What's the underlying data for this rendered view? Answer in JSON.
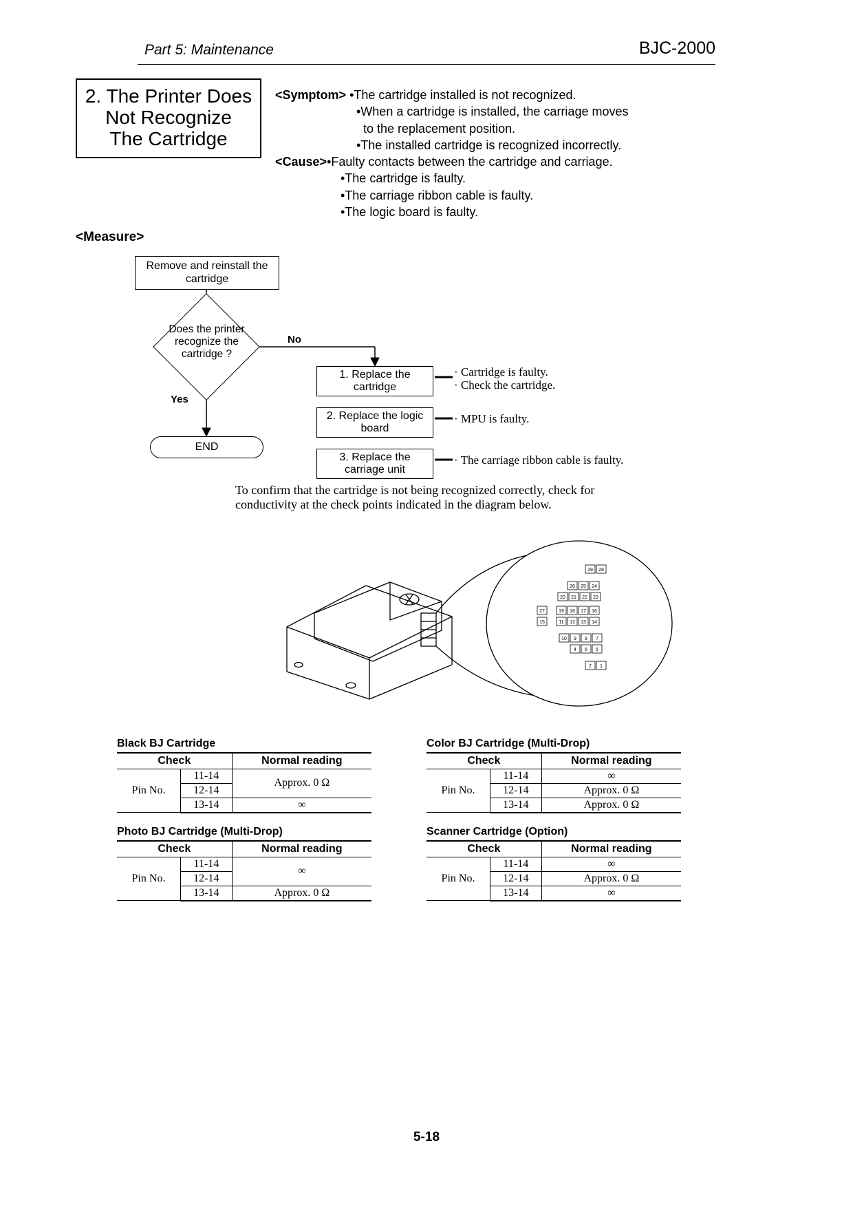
{
  "header": {
    "part": "Part 5: Maintenance",
    "model": "BJC-2000"
  },
  "section": {
    "num_title": "2. The Printer Does",
    "line2": "Not Recognize",
    "line3": "The Cartridge"
  },
  "symptom": {
    "label": "<Symptom>",
    "s1": "•The cartridge installed is not recognized.",
    "s2": "•When a cartridge is installed, the carriage moves",
    "s2b": " to the replacement position.",
    "s3": "•The installed cartridge is recognized incorrectly."
  },
  "cause": {
    "label": "<Cause>",
    "c1": "•Faulty contacts between the cartridge and carriage.",
    "c2": "•The cartridge is faulty.",
    "c3": "•The carriage ribbon cable is faulty.",
    "c4": "•The logic board is faulty."
  },
  "measure_label": "<Measure>",
  "flow": {
    "start": "Remove and reinstall the cartridge",
    "decision": "Does the printer recognize the cartridge ?",
    "yes": "Yes",
    "no": "No",
    "end": "END",
    "step1": "1. Replace the cartridge",
    "step2": "2. Replace the logic board",
    "step3": "3. Replace the carriage unit",
    "note1a": "· Cartridge is faulty.",
    "note1b": "· Check the cartridge.",
    "note2": "· MPU is faulty.",
    "note3": "· The carriage ribbon cable is faulty."
  },
  "confirm": "To confirm that the cartridge is not being recognized correctly, check for conductivity at the check points indicated in the diagram below.",
  "pin_numbers": [
    "29",
    "28",
    "26",
    "25",
    "24",
    "20",
    "21",
    "22",
    "23",
    "27",
    "19",
    "18",
    "17",
    "16",
    "15",
    "11",
    "12",
    "13",
    "14",
    "10",
    "9",
    "8",
    "7",
    "4",
    "6",
    "5",
    "2",
    "1"
  ],
  "tables": {
    "check_hdr": "Check",
    "normal_hdr": "Normal reading",
    "pinno": "Pin No.",
    "pins": [
      "11-14",
      "12-14",
      "13-14"
    ],
    "approx0": "Approx. 0 Ω",
    "inf": "∞",
    "black": {
      "title": "Black BJ Cartridge",
      "r1": "Approx. 0 Ω",
      "r2_merged": true,
      "r3": "∞"
    },
    "color": {
      "title": "Color BJ Cartridge (Multi-Drop)",
      "r1": "∞",
      "r2": "Approx. 0 Ω",
      "r3": "Approx. 0 Ω"
    },
    "photo": {
      "title": "Photo BJ Cartridge (Multi-Drop)",
      "r1": "∞",
      "r2_merged": true,
      "r3": "Approx. 0 Ω"
    },
    "scanner": {
      "title": "Scanner Cartridge (Option)",
      "r1": "∞",
      "r2": "Approx. 0 Ω",
      "r3": "∞"
    }
  },
  "page": "5-18",
  "colors": {
    "line": "#000000",
    "bg": "#ffffff"
  }
}
